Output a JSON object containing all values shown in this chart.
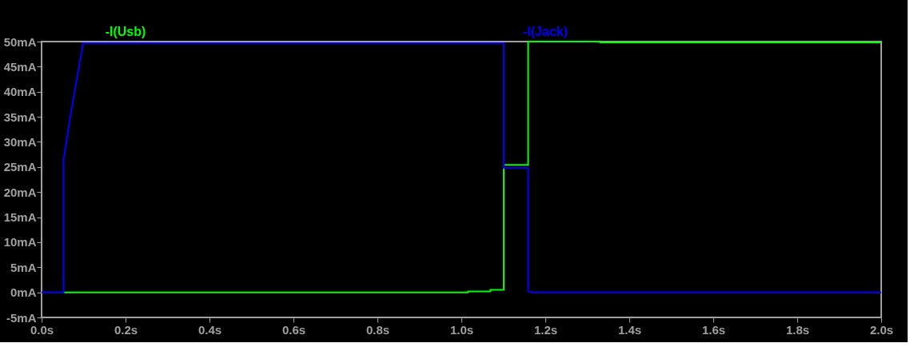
{
  "chart_data": {
    "type": "line",
    "xlim": [
      0,
      2.0
    ],
    "ylim": [
      -5,
      50
    ],
    "xticks": [
      {
        "value": 0,
        "label": "0.0s"
      },
      {
        "value": 0.2,
        "label": "0.2s"
      },
      {
        "value": 0.4,
        "label": "0.4s"
      },
      {
        "value": 0.6,
        "label": "0.6s"
      },
      {
        "value": 0.8,
        "label": "0.8s"
      },
      {
        "value": 1.0,
        "label": "1.0s"
      },
      {
        "value": 1.2,
        "label": "1.2s"
      },
      {
        "value": 1.4,
        "label": "1.4s"
      },
      {
        "value": 1.6,
        "label": "1.6s"
      },
      {
        "value": 1.8,
        "label": "1.8s"
      },
      {
        "value": 2.0,
        "label": "2.0s"
      }
    ],
    "yticks": [
      {
        "value": -5,
        "label": "-5mA"
      },
      {
        "value": 0,
        "label": "0mA"
      },
      {
        "value": 5,
        "label": "5mA"
      },
      {
        "value": 10,
        "label": "10mA"
      },
      {
        "value": 15,
        "label": "15mA"
      },
      {
        "value": 20,
        "label": "20mA"
      },
      {
        "value": 25,
        "label": "25mA"
      },
      {
        "value": 30,
        "label": "30mA"
      },
      {
        "value": 35,
        "label": "35mA"
      },
      {
        "value": 40,
        "label": "40mA"
      },
      {
        "value": 45,
        "label": "45mA"
      },
      {
        "value": 50,
        "label": "50mA"
      }
    ],
    "grid": false,
    "legend": "top",
    "marker": "none",
    "line_style": "solid",
    "series": [
      {
        "name": "-I(Usb)",
        "color": "#00ff00",
        "x": [
          0.0525,
          1.016,
          1.016,
          1.069,
          1.069,
          1.101,
          1.101,
          1.159,
          1.159,
          1.33,
          1.33,
          2.0
        ],
        "values": [
          0,
          0,
          0.2,
          0.2,
          0.5,
          0.5,
          25.4,
          25.4,
          50,
          50,
          49.8,
          49.8
        ]
      },
      {
        "name": "-I(Jack)",
        "color": "#0000ff",
        "x": [
          0,
          0.0525,
          0.0525,
          0.056,
          0.069,
          0.082,
          0.099,
          1.101,
          1.101,
          1.159,
          1.159,
          1.168,
          2.0
        ],
        "values": [
          0,
          0,
          26.5,
          28.4,
          35.3,
          41.6,
          49.7,
          49.7,
          24.8,
          24.8,
          0.2,
          0,
          0
        ]
      }
    ]
  }
}
